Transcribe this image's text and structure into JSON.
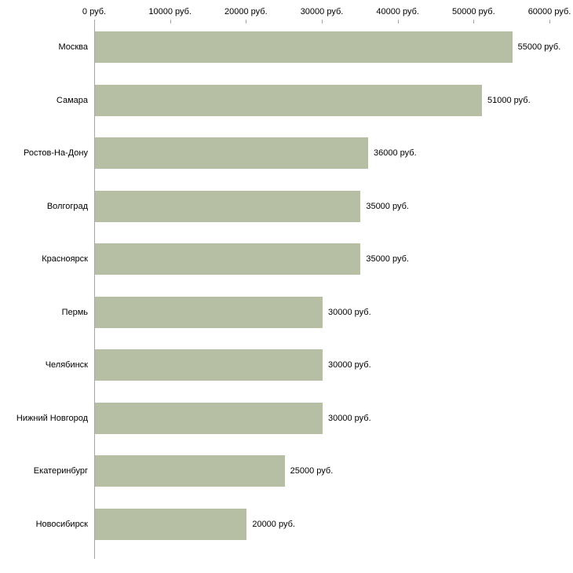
{
  "chart_data": {
    "type": "bar",
    "orientation": "horizontal",
    "title": "",
    "xlabel": "",
    "ylabel": "",
    "categories": [
      "Москва",
      "Самара",
      "Ростов-На-Дону",
      "Волгоград",
      "Красноярск",
      "Пермь",
      "Челябинск",
      "Нижний Новгород",
      "Екатеринбург",
      "Новосибирск"
    ],
    "values": [
      55000,
      51000,
      36000,
      35000,
      35000,
      30000,
      30000,
      30000,
      25000,
      20000
    ],
    "value_labels": [
      "55000 руб.",
      "51000 руб.",
      "36000 руб.",
      "35000 руб.",
      "35000 руб.",
      "30000 руб.",
      "30000 руб.",
      "30000 руб.",
      "25000 руб.",
      "20000 руб."
    ],
    "x_ticks": [
      0,
      10000,
      20000,
      30000,
      40000,
      50000,
      60000
    ],
    "x_tick_labels": [
      "0 руб.",
      "10000 руб.",
      "20000 руб.",
      "30000 руб.",
      "40000 руб.",
      "50000 руб.",
      "60000 руб."
    ],
    "xlim": [
      0,
      60000
    ],
    "grid": false,
    "legend": false,
    "colors": {
      "bar_fill": "#b6bfa3",
      "axis_line": "#a6a6a6",
      "text": "#000000",
      "background": "#ffffff"
    }
  }
}
